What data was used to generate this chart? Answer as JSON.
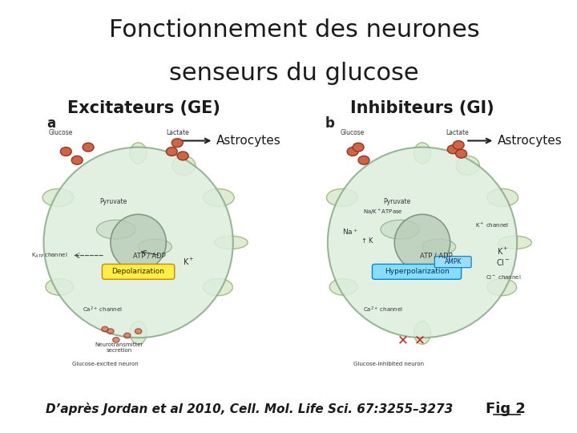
{
  "title_line1": "Fonctionnement des neurones",
  "title_line2": "senseurs du glucose",
  "label_left": "Excitateurs (GE)",
  "label_right": "Inhibiteurs (GI)",
  "astrocytes_left": "Astrocytes",
  "astrocytes_right": "Astrocytes",
  "caption": "D’après Jordan et al 2010, Cell. Mol. Life Sci. 67:3255–3273",
  "fig_label": "Fig 2",
  "background_color": "#ffffff",
  "title_fontsize": 22,
  "label_fontsize": 15,
  "astro_fontsize": 11,
  "caption_fontsize": 11,
  "fig_label_fontsize": 13,
  "title_color": "#1a1a1a",
  "label_color": "#1a1a1a",
  "caption_color": "#1a1a1a",
  "fig_underline_color": "#1a1a1a"
}
